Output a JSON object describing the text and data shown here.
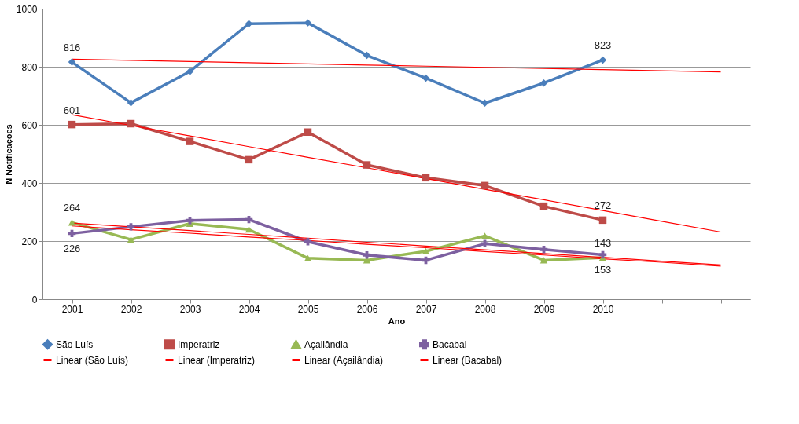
{
  "chart_data": {
    "type": "line",
    "xlabel": "Ano",
    "ylabel": "N Notificações",
    "categories": [
      "2001",
      "2002",
      "2003",
      "2004",
      "2005",
      "2006",
      "2007",
      "2008",
      "2009",
      "2010",
      null,
      null
    ],
    "ylim": [
      0,
      1000
    ],
    "yticks": [
      0,
      200,
      400,
      600,
      800,
      1000
    ],
    "grid": "y",
    "legend": "bottom",
    "series": [
      {
        "name": "São Luís",
        "color": "#4a7ebb",
        "marker": "diamond",
        "values": [
          816,
          676,
          784,
          948,
          951,
          839,
          761,
          675,
          744,
          823,
          null,
          null
        ],
        "value_labels": [
          "816",
          null,
          null,
          null,
          null,
          null,
          null,
          null,
          null,
          "823",
          null,
          null
        ]
      },
      {
        "name": "Imperatriz",
        "color": "#be4b48",
        "marker": "square",
        "values": [
          601,
          604,
          543,
          480,
          575,
          462,
          418,
          391,
          320,
          272,
          null,
          null
        ],
        "value_labels": [
          "601",
          null,
          null,
          null,
          null,
          null,
          null,
          null,
          null,
          "272",
          null,
          null
        ]
      },
      {
        "name": "Açailândia",
        "color": "#98b954",
        "marker": "triangle",
        "values": [
          264,
          205,
          260,
          240,
          141,
          134,
          165,
          218,
          134,
          143,
          null,
          null
        ],
        "value_labels": [
          "264",
          null,
          null,
          null,
          null,
          null,
          null,
          null,
          null,
          "143",
          null,
          null
        ]
      },
      {
        "name": "Bacabal",
        "color": "#7d60a0",
        "marker": "cross",
        "values": [
          226,
          249,
          271,
          274,
          198,
          152,
          134,
          191,
          171,
          153,
          null,
          null
        ],
        "value_labels": [
          "226",
          null,
          null,
          null,
          null,
          null,
          null,
          null,
          null,
          "153",
          null,
          null
        ]
      },
      {
        "name": "Linear (São Luís)",
        "color": "#ff0000",
        "marker": "none",
        "values": [
          826,
          822,
          818,
          814,
          810,
          806,
          802,
          798,
          794,
          790,
          786,
          782
        ]
      },
      {
        "name": "Linear (Imperatriz)",
        "color": "#ff0000",
        "marker": "none",
        "values": [
          635,
          598,
          562,
          525,
          488,
          452,
          415,
          378,
          342,
          305,
          268,
          231
        ]
      },
      {
        "name": "Linear (Açailândia)",
        "color": "#ff0000",
        "marker": "none",
        "values": [
          262,
          249,
          236,
          223,
          210,
          196,
          183,
          170,
          157,
          144,
          131,
          118
        ]
      },
      {
        "name": "Linear (Bacabal)",
        "color": "#ff0000",
        "marker": "none",
        "values": [
          252,
          239,
          227,
          214,
          202,
          189,
          177,
          164,
          152,
          139,
          127,
          114
        ]
      }
    ]
  }
}
